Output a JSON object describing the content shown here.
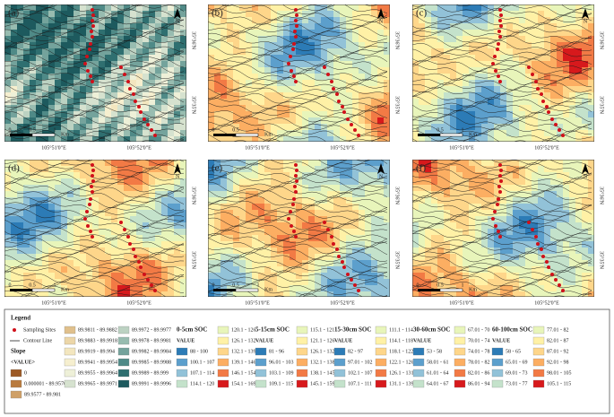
{
  "panels": [
    {
      "label": "(a)"
    },
    {
      "label": "(b)"
    },
    {
      "label": "(c)"
    },
    {
      "label": "(d)"
    },
    {
      "label": "(e)"
    },
    {
      "label": "(f)"
    }
  ],
  "axis": {
    "lon": [
      "105°51'0\"E",
      "105°52'0\"E"
    ],
    "lat": [
      "35°36'N",
      "35°35'N"
    ]
  },
  "scale": [
    "0",
    "0.5",
    "1",
    "Km"
  ],
  "north": "N",
  "legend": {
    "title": "Legend",
    "sites": "Sampling Sites",
    "contour": "Contour Line",
    "slope": {
      "title": "Slope",
      "value": "<VALUE>",
      "classes": [
        "0",
        "0.000001 - 89.9576",
        "89.9577 - 89.981",
        "89.9811 - 89.9882",
        "89.9883 - 89.9918",
        "89.9919 - 89.994",
        "89.9941 - 89.9954",
        "89.9955 - 89.9964",
        "89.9965 - 89.9971",
        "89.9972 - 89.9977",
        "89.9978 - 89.9981",
        "89.9982 - 89.9984",
        "89.9985 - 89.9988",
        "89.9989 - 89.999",
        "89.9991 - 89.9996"
      ],
      "colors": [
        "#9c5a26",
        "#b97b3e",
        "#cfa067",
        "#e0c08c",
        "#ecd6a8",
        "#f3e6bf",
        "#f6efcf",
        "#eef0d8",
        "#d6e2cf",
        "#bcd2c2",
        "#98bcb0",
        "#74a39c",
        "#4f8a87",
        "#2f6f70",
        "#1d5a5e"
      ]
    },
    "soc": [
      {
        "title": "0-5cm SOC",
        "value": "VALUE",
        "classes": [
          "88 - 100",
          "100.1 - 107",
          "107.1 - 114",
          "114.1 - 120",
          "120.1 - 126",
          "126.1 - 132",
          "132.1 - 139",
          "139.1 - 146",
          "146.1 - 154",
          "154.1 - 169"
        ]
      },
      {
        "title": "5-15cm SOC",
        "value": "VALUE",
        "classes": [
          "81 - 96",
          "96.01 - 103",
          "103.1 - 109",
          "109.1 - 115",
          "115.1 - 121",
          "121.1 - 126",
          "126.1 - 132",
          "132.1 - 138",
          "138.1 - 145",
          "145.1 - 159"
        ]
      },
      {
        "title": "15-30cm SOC",
        "value": "VALUE",
        "classes": [
          "82 - 97",
          "97.01 - 102",
          "102.1 - 107",
          "107.1 - 111",
          "111.1 - 114",
          "114.1 - 118",
          "118.1 - 122",
          "122.1 - 126",
          "126.1 - 131",
          "131.1 - 139"
        ]
      },
      {
        "title": "30-60cm SOC",
        "value": "VALUE",
        "classes": [
          "53 - 58",
          "58.01 - 61",
          "61.01 - 64",
          "64.01 - 67",
          "67.01 - 70",
          "70.01 - 74",
          "74.01 - 78",
          "78.01 - 82",
          "82.01 - 86",
          "86.01 - 94"
        ]
      },
      {
        "title": "60-100cm SOC",
        "value": "VALUE",
        "classes": [
          "58 - 65",
          "65.01 - 69",
          "69.01 - 73",
          "73.01 - 77",
          "77.01 - 82",
          "82.01 - 87",
          "87.01 - 92",
          "92.01 - 98",
          "98.01 - 105",
          "105.1 - 115"
        ]
      }
    ],
    "soc_colors": [
      "#2c7bb6",
      "#5c9fcc",
      "#92c2d8",
      "#c4e2cb",
      "#e8f5ba",
      "#fff1a6",
      "#fed68a",
      "#fcae62",
      "#f27a45",
      "#d7191c"
    ]
  }
}
